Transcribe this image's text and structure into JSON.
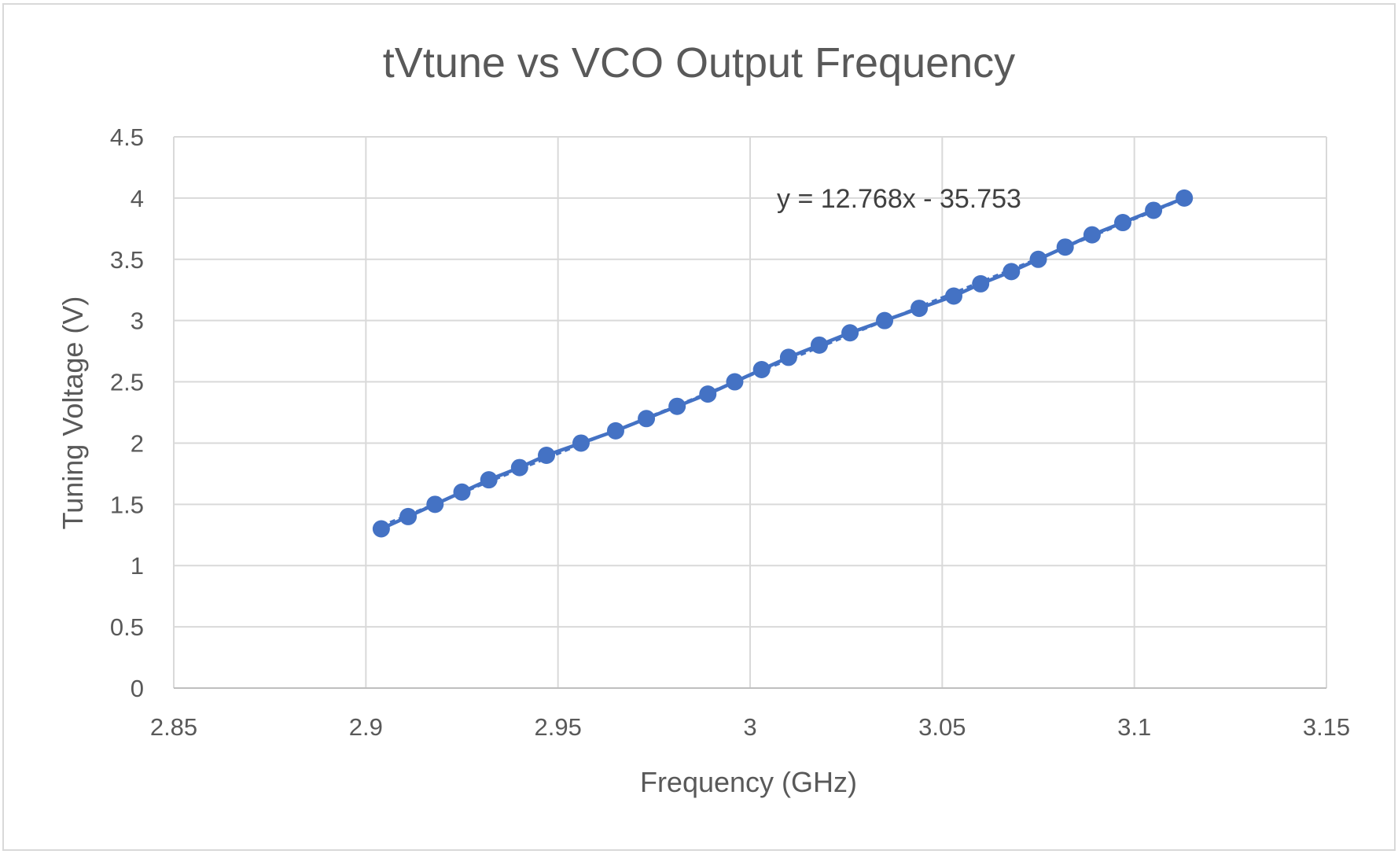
{
  "chart_data": {
    "type": "scatter",
    "title": "tVtune vs VCO Output Frequency",
    "xlabel": "Frequency (GHz)",
    "ylabel": "Tuning Voltage (V)",
    "xlim": [
      2.85,
      3.15
    ],
    "ylim": [
      0,
      4.5
    ],
    "x_ticks": [
      "2.85",
      "2.9",
      "2.95",
      "3",
      "3.05",
      "3.1",
      "3.15"
    ],
    "y_ticks": [
      "0",
      "0.5",
      "1",
      "1.5",
      "2",
      "2.5",
      "3",
      "3.5",
      "4",
      "4.5"
    ],
    "grid": true,
    "marker_color": "#4472C4",
    "trendline_color": "#4472C4",
    "trendline_style": "dashed",
    "series": [
      {
        "x": [
          2.904,
          2.911,
          2.918,
          2.925,
          2.932,
          2.94,
          2.947,
          2.956,
          2.965,
          2.973,
          2.981,
          2.989,
          2.996,
          3.003,
          3.01,
          3.018,
          3.026,
          3.035,
          3.044,
          3.053,
          3.06,
          3.068,
          3.075,
          3.082,
          3.089,
          3.097,
          3.105,
          3.113
        ],
        "y": [
          1.3,
          1.4,
          1.5,
          1.6,
          1.7,
          1.8,
          1.9,
          2.0,
          2.1,
          2.2,
          2.3,
          2.4,
          2.5,
          2.6,
          2.7,
          2.8,
          2.9,
          3.0,
          3.1,
          3.2,
          3.3,
          3.4,
          3.5,
          3.6,
          3.7,
          3.8,
          3.9,
          4.0
        ]
      }
    ],
    "trendline": {
      "slope": 12.768,
      "intercept": -35.753,
      "equation": "y = 12.768x - 35.753"
    }
  }
}
